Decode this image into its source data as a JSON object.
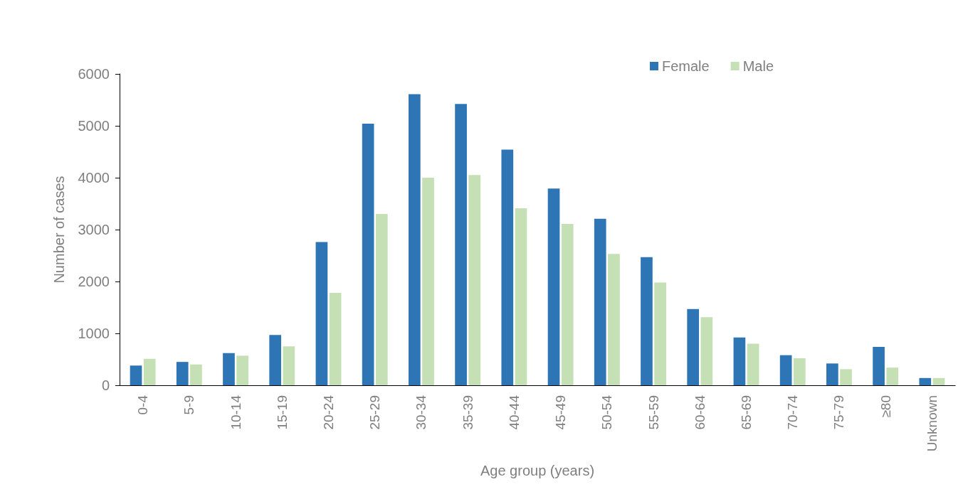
{
  "chart_data": {
    "type": "bar",
    "xlabel": "Age group (years)",
    "ylabel": "Number of cases",
    "categories": [
      "0-4",
      "5-9",
      "10-14",
      "15-19",
      "20-24",
      "25-29",
      "30-34",
      "35-39",
      "40-44",
      "45-49",
      "50-54",
      "55-59",
      "60-64",
      "65-69",
      "70-74",
      "75-79",
      "≥80",
      "Unknown"
    ],
    "series": [
      {
        "name": "Female",
        "color": "#2e75b6",
        "values": [
          380,
          450,
          620,
          970,
          2760,
          5040,
          5610,
          5420,
          4540,
          3790,
          3210,
          2470,
          1470,
          920,
          580,
          420,
          740,
          140
        ]
      },
      {
        "name": "Male",
        "color": "#c5e0b4",
        "values": [
          510,
          400,
          570,
          750,
          1780,
          3300,
          4000,
          4050,
          3410,
          3110,
          2530,
          1980,
          1310,
          800,
          520,
          310,
          340,
          140
        ]
      }
    ],
    "ylim": [
      0,
      6000
    ],
    "yticks": [
      0,
      1000,
      2000,
      3000,
      4000,
      5000,
      6000
    ],
    "grid": false,
    "legend": "top right"
  }
}
